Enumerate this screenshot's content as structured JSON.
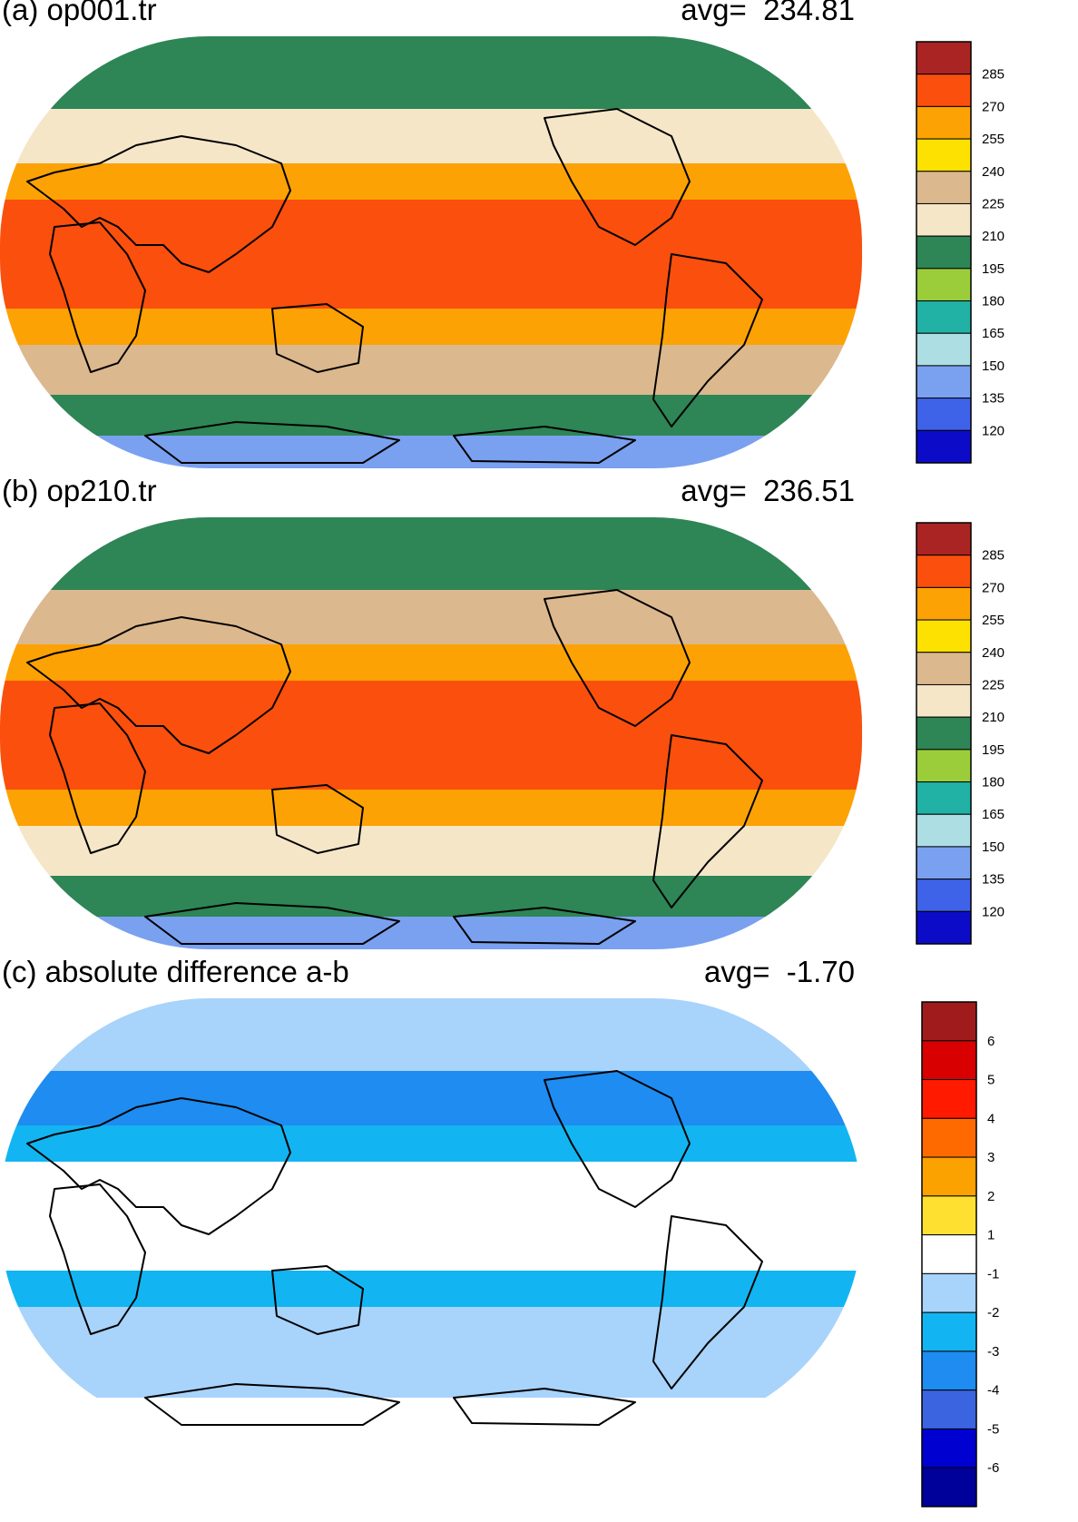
{
  "panels": [
    {
      "title": "(a) op001.tr",
      "avg_label": "avg=",
      "avg_value": "234.81",
      "colorbar": {
        "labels": [
          "285",
          "270",
          "255",
          "240",
          "225",
          "210",
          "195",
          "180",
          "165",
          "150",
          "135",
          "120"
        ],
        "colors": [
          "#aa2424",
          "#fa4f0d",
          "#fca204",
          "#fde100",
          "#dcb88e",
          "#f5e6c8",
          "#2e8555",
          "#9bcd3b",
          "#21b2a5",
          "#addee3",
          "#7aa0f0",
          "#3e63e8",
          "#0c0cc8"
        ]
      },
      "bands": {
        "arctic": "#2e8555",
        "north_mid": "#f5e6c8",
        "subtropic": "#fca204",
        "deep_tropic": "#fa4f0d",
        "south_mid": "#dcb88e",
        "southern_ocean": "#2e8555",
        "antarctic": "#7aa0f0"
      }
    },
    {
      "title": "(b) op210.tr",
      "avg_label": "avg=",
      "avg_value": "236.51",
      "colorbar": {
        "labels": [
          "285",
          "270",
          "255",
          "240",
          "225",
          "210",
          "195",
          "180",
          "165",
          "150",
          "135",
          "120"
        ],
        "colors": [
          "#aa2424",
          "#fa4f0d",
          "#fca204",
          "#fde100",
          "#dcb88e",
          "#f5e6c8",
          "#2e8555",
          "#9bcd3b",
          "#21b2a5",
          "#addee3",
          "#7aa0f0",
          "#3e63e8",
          "#0c0cc8"
        ]
      },
      "bands": {
        "arctic": "#2e8555",
        "north_mid": "#dcb88e",
        "subtropic": "#fca204",
        "deep_tropic": "#fa4f0d",
        "south_mid": "#f5e6c8",
        "southern_ocean": "#2e8555",
        "antarctic": "#7aa0f0"
      }
    },
    {
      "title": "(c) absolute difference a-b",
      "avg_label": "avg=",
      "avg_value": "-1.70",
      "colorbar": {
        "labels": [
          "6",
          "5",
          "4",
          "3",
          "2",
          "1",
          "-1",
          "-2",
          "-3",
          "-4",
          "-5",
          "-6"
        ],
        "colors": [
          "#a01c1c",
          "#d80000",
          "#ff1a00",
          "#ff6a00",
          "#fba100",
          "#fee030",
          "#ffffff",
          "#a8d3fb",
          "#12b5f2",
          "#1e8cf0",
          "#3a64e0",
          "#0000d0",
          "#00009b"
        ]
      },
      "bands": {
        "arctic": "#a8d3fb",
        "north_mid": "#1e8cf0",
        "subtropic": "#12b5f2",
        "deep_tropic": "#ffffff",
        "south_mid": "#a8d3fb",
        "southern_ocean": "#a8d3fb",
        "antarctic": "#ffffff"
      }
    }
  ]
}
